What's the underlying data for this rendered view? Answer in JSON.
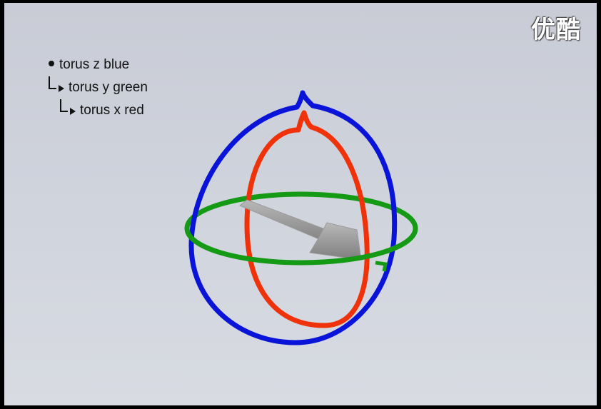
{
  "watermark": {
    "text": "优酷"
  },
  "hierarchy": {
    "items": [
      {
        "label": "torus z blue",
        "depth": 0
      },
      {
        "label": "torus y green",
        "depth": 1
      },
      {
        "label": "torus x red",
        "depth": 2
      }
    ]
  },
  "scene": {
    "colors": {
      "torus_z": "#0a14d8",
      "torus_y": "#149a14",
      "torus_x": "#f0320a",
      "arrow": "#9a9a9a",
      "background": "#cdd0d9"
    }
  }
}
